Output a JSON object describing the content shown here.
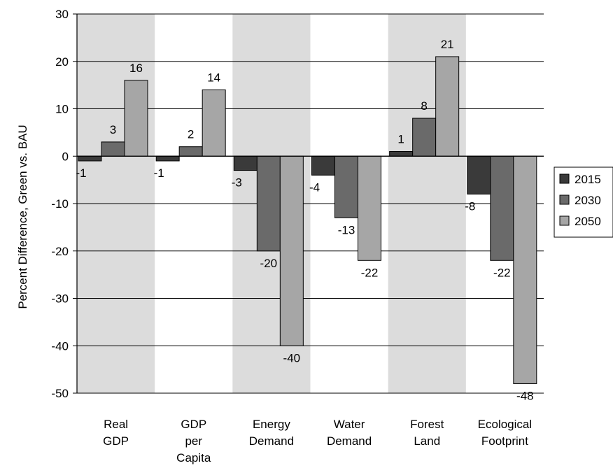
{
  "chart_data": {
    "type": "bar",
    "title": "",
    "ylabel": "Percent Difference, Green vs. BAU",
    "xlabel": "",
    "ylim": [
      -50,
      30
    ],
    "yticks": [
      30,
      20,
      10,
      0,
      -10,
      -20,
      -30,
      -40,
      -50
    ],
    "grid": true,
    "legend_position": "right",
    "categories": [
      [
        "Real",
        "GDP"
      ],
      [
        "GDP",
        "per",
        "Capita"
      ],
      [
        "Energy",
        "Demand"
      ],
      [
        "Water",
        "Demand"
      ],
      [
        "Forest",
        "Land"
      ],
      [
        "Ecological",
        "Footprint"
      ]
    ],
    "series": [
      {
        "name": "2015",
        "color": "#3a3a3a",
        "values": [
          -1,
          -1,
          -3,
          -4,
          1,
          -8
        ]
      },
      {
        "name": "2030",
        "color": "#6a6a6a",
        "values": [
          3,
          2,
          -20,
          -13,
          8,
          -22
        ]
      },
      {
        "name": "2050",
        "color": "#a6a6a6",
        "values": [
          16,
          14,
          -40,
          -22,
          21,
          -48
        ]
      }
    ],
    "band_color": "#dcdcdc"
  }
}
